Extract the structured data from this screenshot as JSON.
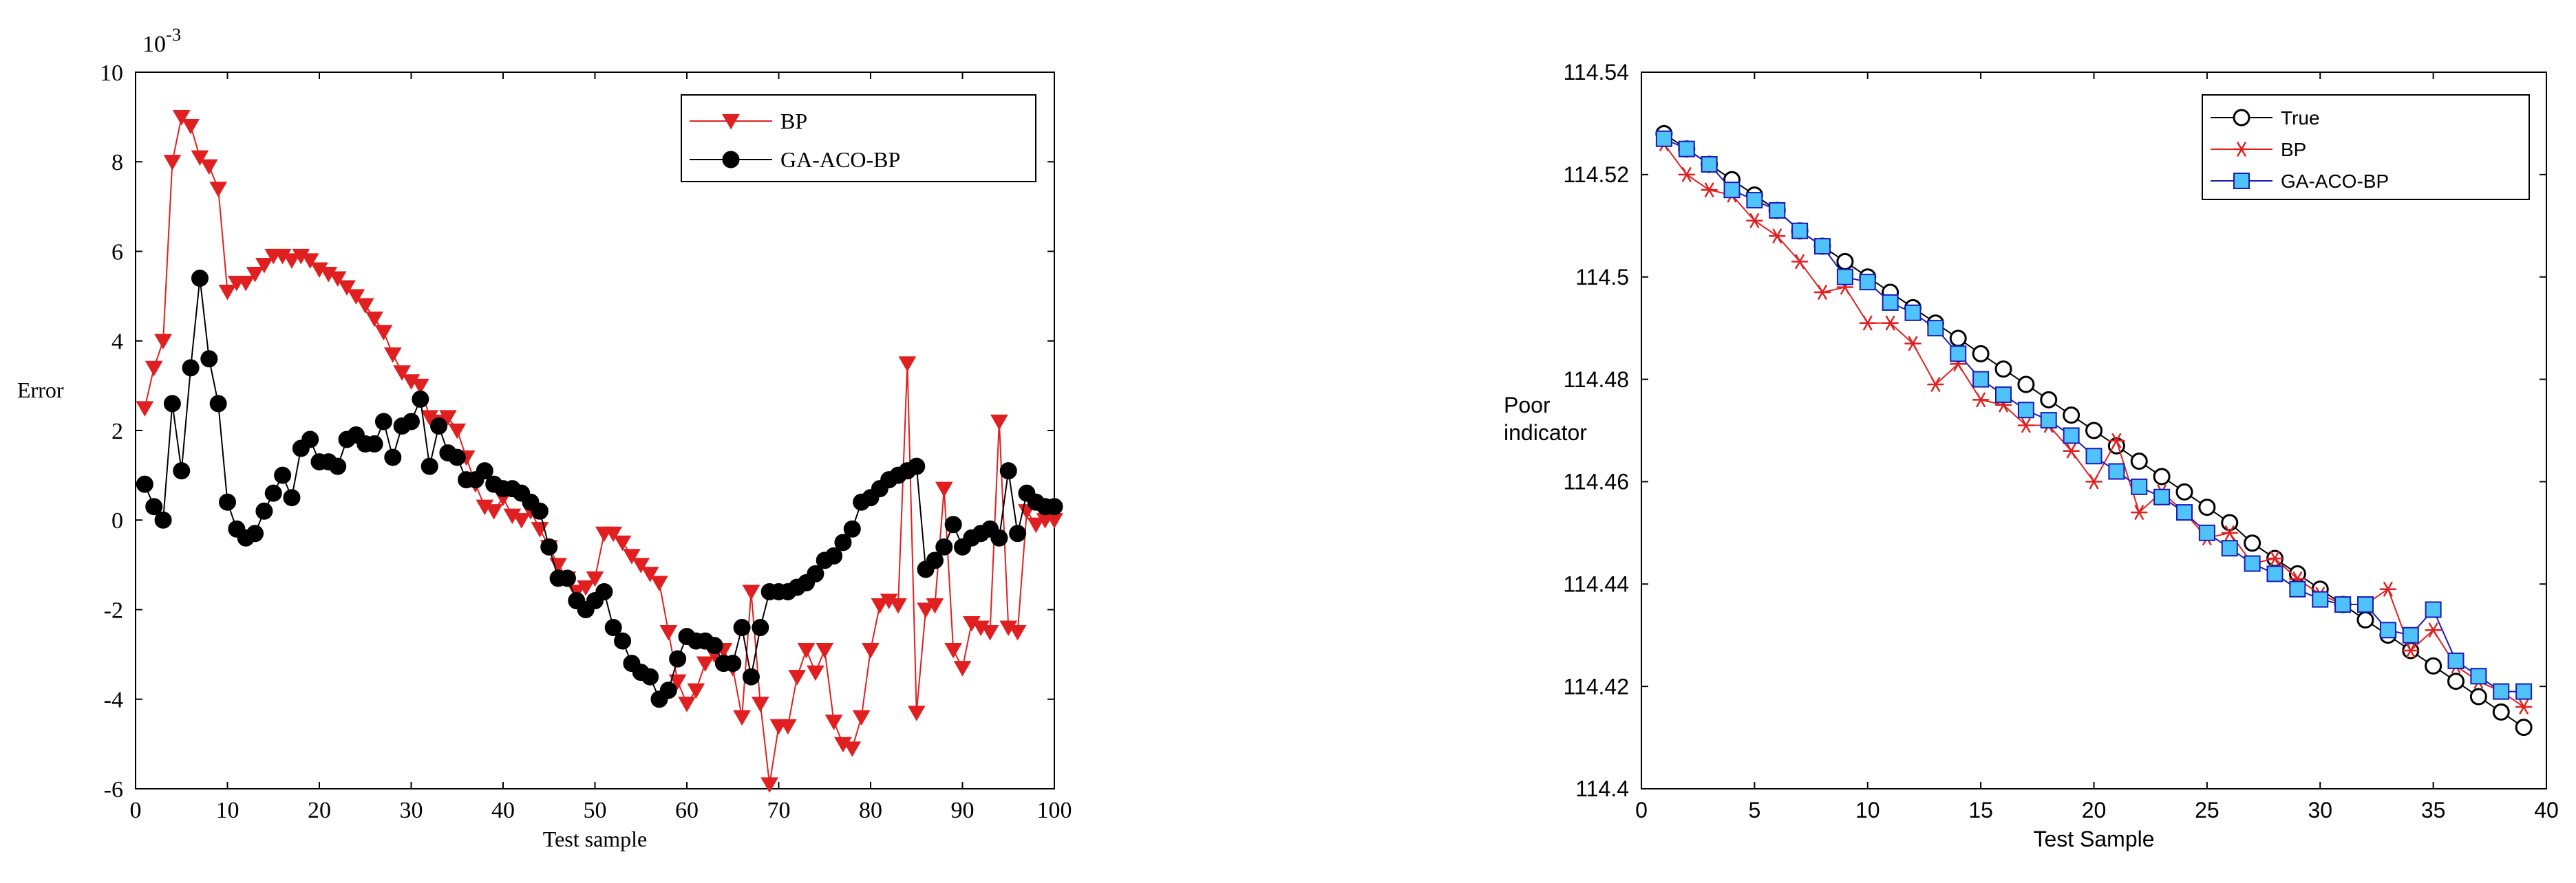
{
  "chart_data": [
    {
      "type": "line",
      "title": "",
      "xlabel": "Test sample",
      "ylabel": "Error",
      "y_exponent_label": "10",
      "y_exponent_power": "-3",
      "xlim": [
        0,
        100
      ],
      "ylim": [
        -6,
        10
      ],
      "xticks": [
        0,
        10,
        20,
        30,
        40,
        50,
        60,
        70,
        80,
        90,
        100
      ],
      "yticks": [
        -6,
        -4,
        -2,
        0,
        2,
        4,
        6,
        8,
        10
      ],
      "grid": false,
      "legend_position": "top-right",
      "series": [
        {
          "name": "BP",
          "color": "#e02020",
          "marker": "triangle-down",
          "x": [
            1,
            2,
            3,
            4,
            5,
            6,
            7,
            8,
            9,
            10,
            11,
            12,
            13,
            14,
            15,
            16,
            17,
            18,
            19,
            20,
            21,
            22,
            23,
            24,
            25,
            26,
            27,
            28,
            29,
            30,
            31,
            32,
            33,
            34,
            35,
            36,
            37,
            38,
            39,
            40,
            41,
            42,
            43,
            44,
            45,
            46,
            47,
            48,
            49,
            50,
            51,
            52,
            53,
            54,
            55,
            56,
            57,
            58,
            59,
            60,
            61,
            62,
            63,
            64,
            65,
            66,
            67,
            68,
            69,
            70,
            71,
            72,
            73,
            74,
            75,
            76,
            77,
            78,
            79,
            80,
            81,
            82,
            83,
            84,
            85,
            86,
            87,
            88,
            89,
            90,
            91,
            92,
            93,
            94,
            95,
            96,
            97,
            98,
            99,
            100
          ],
          "values": [
            2.5,
            3.4,
            4.0,
            8.0,
            9.0,
            8.8,
            8.1,
            7.9,
            7.4,
            5.1,
            5.3,
            5.3,
            5.5,
            5.7,
            5.9,
            5.9,
            5.8,
            5.9,
            5.8,
            5.6,
            5.5,
            5.4,
            5.2,
            5.0,
            4.8,
            4.5,
            4.2,
            3.7,
            3.3,
            3.1,
            3.0,
            2.3,
            2.2,
            2.3,
            2.0,
            1.4,
            0.8,
            0.3,
            0.2,
            0.5,
            0.1,
            0.0,
            0.2,
            -0.2,
            -0.6,
            -1.0,
            -1.3,
            -1.6,
            -1.5,
            -1.3,
            -0.3,
            -0.3,
            -0.5,
            -0.8,
            -1.0,
            -1.2,
            -1.4,
            -2.5,
            -3.6,
            -4.1,
            -3.8,
            -3.2,
            -3.0,
            -2.9,
            -3.3,
            -4.4,
            -1.6,
            -4.1,
            -5.9,
            -4.6,
            -4.6,
            -3.5,
            -2.9,
            -3.4,
            -2.9,
            -4.5,
            -5.0,
            -5.1,
            -4.4,
            -2.9,
            -1.9,
            -1.8,
            -1.9,
            3.5,
            -4.3,
            -2.0,
            -1.9,
            0.7,
            -2.9,
            -3.3,
            -2.3,
            -2.4,
            -2.5,
            2.2,
            -2.4,
            -2.5,
            0.2,
            -0.1,
            0.0,
            0.0
          ]
        },
        {
          "name": "GA-ACO-BP",
          "color": "#000000",
          "marker": "circle-filled",
          "x": [
            1,
            2,
            3,
            4,
            5,
            6,
            7,
            8,
            9,
            10,
            11,
            12,
            13,
            14,
            15,
            16,
            17,
            18,
            19,
            20,
            21,
            22,
            23,
            24,
            25,
            26,
            27,
            28,
            29,
            30,
            31,
            32,
            33,
            34,
            35,
            36,
            37,
            38,
            39,
            40,
            41,
            42,
            43,
            44,
            45,
            46,
            47,
            48,
            49,
            50,
            51,
            52,
            53,
            54,
            55,
            56,
            57,
            58,
            59,
            60,
            61,
            62,
            63,
            64,
            65,
            66,
            67,
            68,
            69,
            70,
            71,
            72,
            73,
            74,
            75,
            76,
            77,
            78,
            79,
            80,
            81,
            82,
            83,
            84,
            85,
            86,
            87,
            88,
            89,
            90,
            91,
            92,
            93,
            94,
            95,
            96,
            97,
            98,
            99,
            100
          ],
          "values": [
            0.8,
            0.3,
            0.0,
            2.6,
            1.1,
            3.4,
            5.4,
            3.6,
            2.6,
            0.4,
            -0.2,
            -0.4,
            -0.3,
            0.2,
            0.6,
            1.0,
            0.5,
            1.6,
            1.8,
            1.3,
            1.3,
            1.2,
            1.8,
            1.9,
            1.7,
            1.7,
            2.2,
            1.4,
            2.1,
            2.2,
            2.7,
            1.2,
            2.1,
            1.5,
            1.4,
            0.9,
            0.9,
            1.1,
            0.8,
            0.7,
            0.7,
            0.6,
            0.4,
            0.2,
            -0.6,
            -1.3,
            -1.3,
            -1.8,
            -2.0,
            -1.8,
            -1.6,
            -2.4,
            -2.7,
            -3.2,
            -3.4,
            -3.5,
            -4.0,
            -3.8,
            -3.1,
            -2.6,
            -2.7,
            -2.7,
            -2.8,
            -3.2,
            -3.2,
            -2.4,
            -3.5,
            -2.4,
            -1.6,
            -1.6,
            -1.6,
            -1.5,
            -1.4,
            -1.2,
            -0.9,
            -0.8,
            -0.5,
            -0.2,
            0.4,
            0.5,
            0.7,
            0.9,
            1.0,
            1.1,
            1.2,
            -1.1,
            -0.9,
            -0.6,
            -0.1,
            -0.6,
            -0.4,
            -0.3,
            -0.2,
            -0.4,
            1.1,
            -0.3,
            0.6,
            0.4,
            0.3,
            0.3
          ]
        }
      ]
    },
    {
      "type": "line",
      "title": "",
      "xlabel": "Test Sample",
      "ylabel": "Poor indicator",
      "ylabel_lines": [
        "Poor",
        "indicator"
      ],
      "xlim": [
        0,
        40
      ],
      "ylim": [
        114.4,
        114.54
      ],
      "xticks": [
        0,
        5,
        10,
        15,
        20,
        25,
        30,
        35,
        40
      ],
      "xtick_labels": [
        "0",
        "5",
        "10",
        "15",
        "20",
        "25",
        "30",
        "35",
        "40"
      ],
      "yticks": [
        114.4,
        114.42,
        114.44,
        114.46,
        114.48,
        114.5,
        114.52,
        114.54
      ],
      "ytick_labels": [
        "114.4",
        "114.42",
        "114.44",
        "114.46",
        "114.48",
        "114.5",
        "114.52",
        "114.54"
      ],
      "grid": false,
      "legend_position": "top-right",
      "series": [
        {
          "name": "True",
          "color": "#000000",
          "marker": "circle-open",
          "x": [
            1,
            2,
            3,
            4,
            5,
            6,
            7,
            8,
            9,
            10,
            11,
            12,
            13,
            14,
            15,
            16,
            17,
            18,
            19,
            20,
            21,
            22,
            23,
            24,
            25,
            26,
            27,
            28,
            29,
            30,
            31,
            32,
            33,
            34,
            35,
            36,
            37,
            38,
            39
          ],
          "values": [
            114.528,
            114.525,
            114.522,
            114.519,
            114.516,
            114.513,
            114.509,
            114.506,
            114.503,
            114.5,
            114.497,
            114.494,
            114.491,
            114.488,
            114.485,
            114.482,
            114.479,
            114.476,
            114.473,
            114.47,
            114.467,
            114.464,
            114.461,
            114.458,
            114.455,
            114.452,
            114.448,
            114.445,
            114.442,
            114.439,
            114.436,
            114.433,
            114.43,
            114.427,
            114.424,
            114.421,
            114.418,
            114.415,
            114.412
          ]
        },
        {
          "name": "BP",
          "color": "#e02020",
          "marker": "asterisk",
          "x": [
            1,
            2,
            3,
            4,
            5,
            6,
            7,
            8,
            9,
            10,
            11,
            12,
            13,
            14,
            15,
            16,
            17,
            18,
            19,
            20,
            21,
            22,
            23,
            24,
            25,
            26,
            27,
            28,
            29,
            30,
            31,
            32,
            33,
            34,
            35,
            36,
            37,
            38,
            39
          ],
          "values": [
            114.526,
            114.52,
            114.517,
            114.516,
            114.511,
            114.508,
            114.503,
            114.497,
            114.498,
            114.491,
            114.491,
            114.487,
            114.479,
            114.483,
            114.476,
            114.475,
            114.471,
            114.471,
            114.466,
            114.46,
            114.468,
            114.454,
            114.458,
            114.454,
            114.449,
            114.45,
            114.444,
            114.445,
            114.441,
            114.438,
            114.436,
            114.436,
            114.439,
            114.427,
            114.431,
            114.424,
            114.421,
            114.419,
            114.416
          ]
        },
        {
          "name": "GA-ACO-BP",
          "color": "#1a1ab8",
          "fill": "#4fc3f7",
          "marker": "square",
          "x": [
            1,
            2,
            3,
            4,
            5,
            6,
            7,
            8,
            9,
            10,
            11,
            12,
            13,
            14,
            15,
            16,
            17,
            18,
            19,
            20,
            21,
            22,
            23,
            24,
            25,
            26,
            27,
            28,
            29,
            30,
            31,
            32,
            33,
            34,
            35,
            36,
            37,
            38,
            39
          ],
          "values": [
            114.527,
            114.525,
            114.522,
            114.517,
            114.515,
            114.513,
            114.509,
            114.506,
            114.5,
            114.499,
            114.495,
            114.493,
            114.49,
            114.485,
            114.48,
            114.477,
            114.474,
            114.472,
            114.469,
            114.465,
            114.462,
            114.459,
            114.457,
            114.454,
            114.45,
            114.447,
            114.444,
            114.442,
            114.439,
            114.437,
            114.436,
            114.436,
            114.431,
            114.43,
            114.435,
            114.425,
            114.422,
            114.419,
            114.419
          ]
        }
      ]
    }
  ]
}
